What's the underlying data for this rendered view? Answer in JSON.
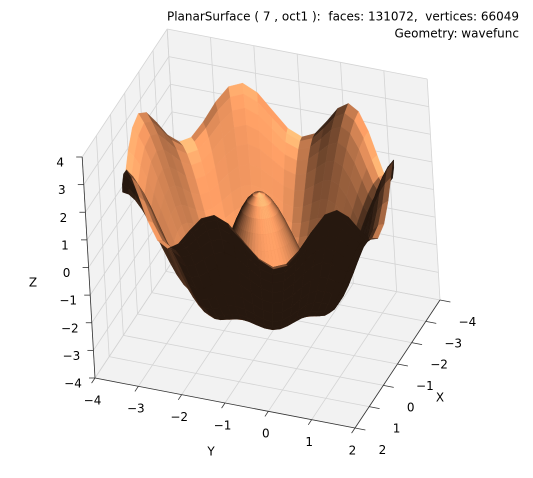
{
  "chart_data": {
    "type": "surface3d",
    "title": "PlanarSurface ( 7 , oct1 ):  faces: 131072,  vertices: 66049",
    "subtitle": "Geometry: wavefunc",
    "xlabel": "X",
    "ylabel": "Y",
    "zlabel": "Z",
    "xlim": [
      -4,
      2
    ],
    "ylim": [
      -4,
      2
    ],
    "zlim": [
      -4,
      4
    ],
    "xticks": [
      {
        "value": -4,
        "label": "−4"
      },
      {
        "value": -3,
        "label": "−3"
      },
      {
        "value": -2,
        "label": "−2"
      },
      {
        "value": -1,
        "label": "−1"
      },
      0,
      1,
      2
    ],
    "yticks": [
      {
        "value": -4,
        "label": "−4"
      },
      {
        "value": -3,
        "label": "−3"
      },
      {
        "value": -2,
        "label": "−2"
      },
      {
        "value": -1,
        "label": "−1"
      },
      0,
      1,
      2
    ],
    "zticks": [
      {
        "value": -4,
        "label": "−4"
      },
      {
        "value": -3,
        "label": "−3"
      },
      {
        "value": -2,
        "label": "−2"
      },
      {
        "value": -1,
        "label": "−1"
      },
      0,
      1,
      2,
      3,
      4
    ],
    "grid": true,
    "colormap": "copper"
  }
}
